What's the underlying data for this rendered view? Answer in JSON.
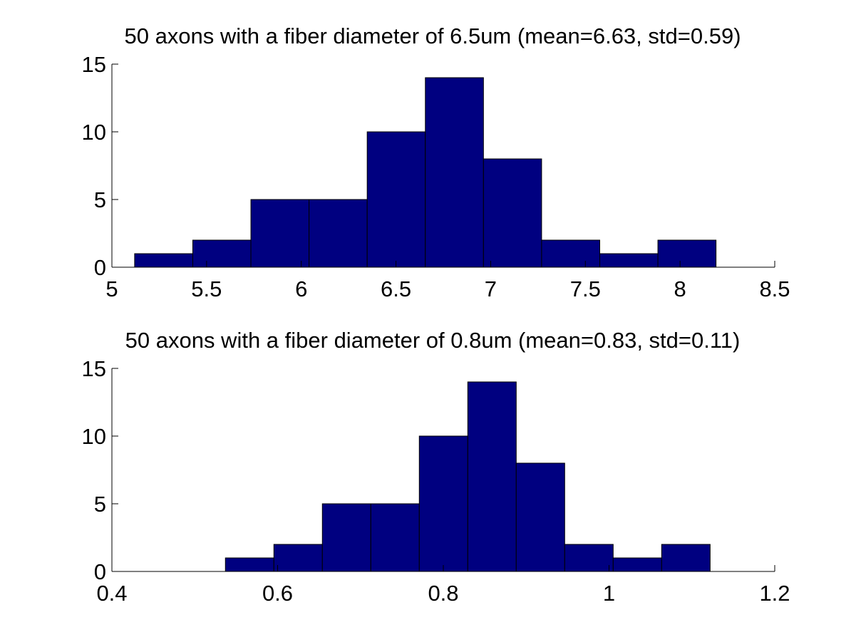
{
  "chart_data": [
    {
      "type": "bar",
      "title": "50 axons with a fiber diameter of 6.5um (mean=6.63, std=0.59)",
      "xlabel": "",
      "ylabel": "",
      "xlim": [
        5,
        8.5
      ],
      "ylim": [
        0,
        15
      ],
      "xticks": [
        "5",
        "5.5",
        "6",
        "6.5",
        "7",
        "7.5",
        "8",
        "8.5"
      ],
      "yticks": [
        "0",
        "5",
        "10",
        "15"
      ],
      "bin_edges": [
        5.12,
        5.427,
        5.734,
        6.041,
        6.348,
        6.655,
        6.962,
        7.269,
        7.576,
        7.883,
        8.19
      ],
      "values": [
        1,
        2,
        5,
        5,
        10,
        14,
        8,
        2,
        1,
        2
      ],
      "bar_color": "#000080",
      "grid": false
    },
    {
      "type": "bar",
      "title": "50 axons with a fiber diameter of 0.8um (mean=0.83, std=0.11)",
      "xlabel": "",
      "ylabel": "",
      "xlim": [
        0.4,
        1.2
      ],
      "ylim": [
        0,
        15
      ],
      "xticks": [
        "0.4",
        "0.6",
        "0.8",
        "1",
        "1.2"
      ],
      "yticks": [
        "0",
        "5",
        "10",
        "15"
      ],
      "bin_edges": [
        0.537,
        0.5955,
        0.654,
        0.7125,
        0.771,
        0.8295,
        0.888,
        0.9465,
        1.005,
        1.0635,
        1.122
      ],
      "values": [
        1,
        2,
        5,
        5,
        10,
        14,
        8,
        2,
        1,
        2
      ],
      "bar_color": "#000080",
      "grid": false
    }
  ]
}
